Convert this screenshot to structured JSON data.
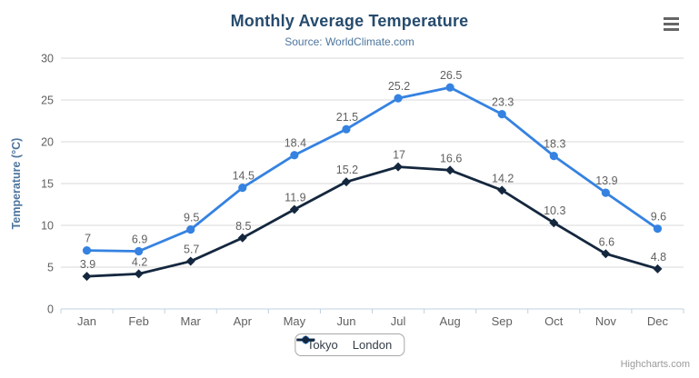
{
  "header": {
    "title": "Monthly Average Temperature",
    "subtitle": "Source: WorldClimate.com"
  },
  "credits": {
    "label": "Highcharts.com"
  },
  "icons": {
    "menu": "hamburger-icon"
  },
  "colors": {
    "title": "#274b6d",
    "subtitle": "#4d759e",
    "axis_title": "#4d759e",
    "tick_label": "#606060",
    "data_label": "#606060",
    "gridline": "#d8d8d8",
    "axis_line": "#c0d0e0",
    "tokyo": "#3582e1",
    "london": "#14273e",
    "legend_text": "#333c48",
    "credits_text": "#9b9b9b"
  },
  "chart_data": {
    "type": "line",
    "title": "Monthly Average Temperature",
    "subtitle": "Source: WorldClimate.com",
    "categories": [
      "Jan",
      "Feb",
      "Mar",
      "Apr",
      "May",
      "Jun",
      "Jul",
      "Aug",
      "Sep",
      "Oct",
      "Nov",
      "Dec"
    ],
    "series": [
      {
        "name": "Tokyo",
        "color": "#3582e1",
        "marker": "circle",
        "values": [
          7,
          6.9,
          9.5,
          14.5,
          18.4,
          21.5,
          25.2,
          26.5,
          23.3,
          18.3,
          13.9,
          9.6
        ]
      },
      {
        "name": "London",
        "color": "#14273e",
        "marker": "diamond",
        "values": [
          3.9,
          4.2,
          5.7,
          8.5,
          11.9,
          15.2,
          17,
          16.6,
          14.2,
          10.3,
          6.6,
          4.8
        ]
      }
    ],
    "xlabel": "",
    "ylabel": "Temperature (°C)",
    "ylim": [
      0,
      30
    ],
    "ytick_interval": 5,
    "grid": true,
    "data_labels": true,
    "legend_position": "bottom"
  }
}
